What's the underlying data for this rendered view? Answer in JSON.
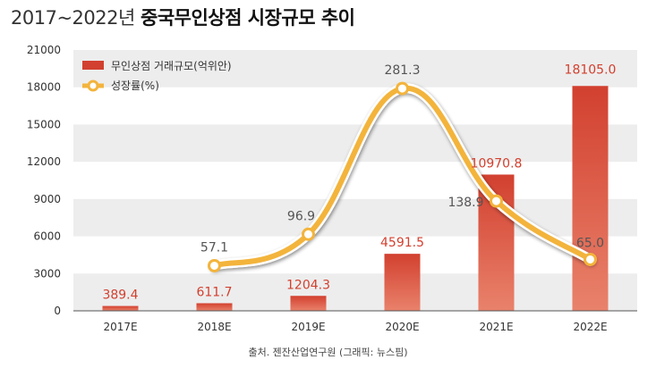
{
  "title": {
    "years": "2017~2022년",
    "main": "중국무인상점 시장규모 추이"
  },
  "source": "출처. 젠잔산업연구원 (그래픽: 뉴스핌)",
  "colors": {
    "bar": "#d2402f",
    "line": "#f3b43c",
    "marker_fill": "#ffffff",
    "band": "#ededed",
    "bar_label": "#d2402f",
    "line_label": "#555555"
  },
  "chart_data": {
    "type": "bar",
    "categories": [
      "2017E",
      "2018E",
      "2019E",
      "2020E",
      "2021E",
      "2022E"
    ],
    "series": [
      {
        "name": "무인상점 거래규모(억위안)",
        "type": "bar",
        "values": [
          389.4,
          611.7,
          1204.3,
          4591.5,
          10970.8,
          18105.0
        ],
        "labels": [
          "389.4",
          "611.7",
          "1204.3",
          "4591.5",
          "10970.8",
          "18105.0"
        ]
      },
      {
        "name": "성장률(%)",
        "type": "line",
        "values": [
          null,
          57.1,
          96.9,
          281.3,
          138.9,
          65.0
        ],
        "labels": [
          "",
          "57.1",
          "96.9",
          "281.3",
          "138.9",
          "65.0"
        ]
      }
    ],
    "y_ticks": [
      "0",
      "3000",
      "6000",
      "9000",
      "12000",
      "15000",
      "18000",
      "21000"
    ],
    "ylim": [
      0,
      21000
    ],
    "y2lim": [
      0,
      330
    ],
    "legend_position": "top-left",
    "grid": "alternating bands"
  }
}
